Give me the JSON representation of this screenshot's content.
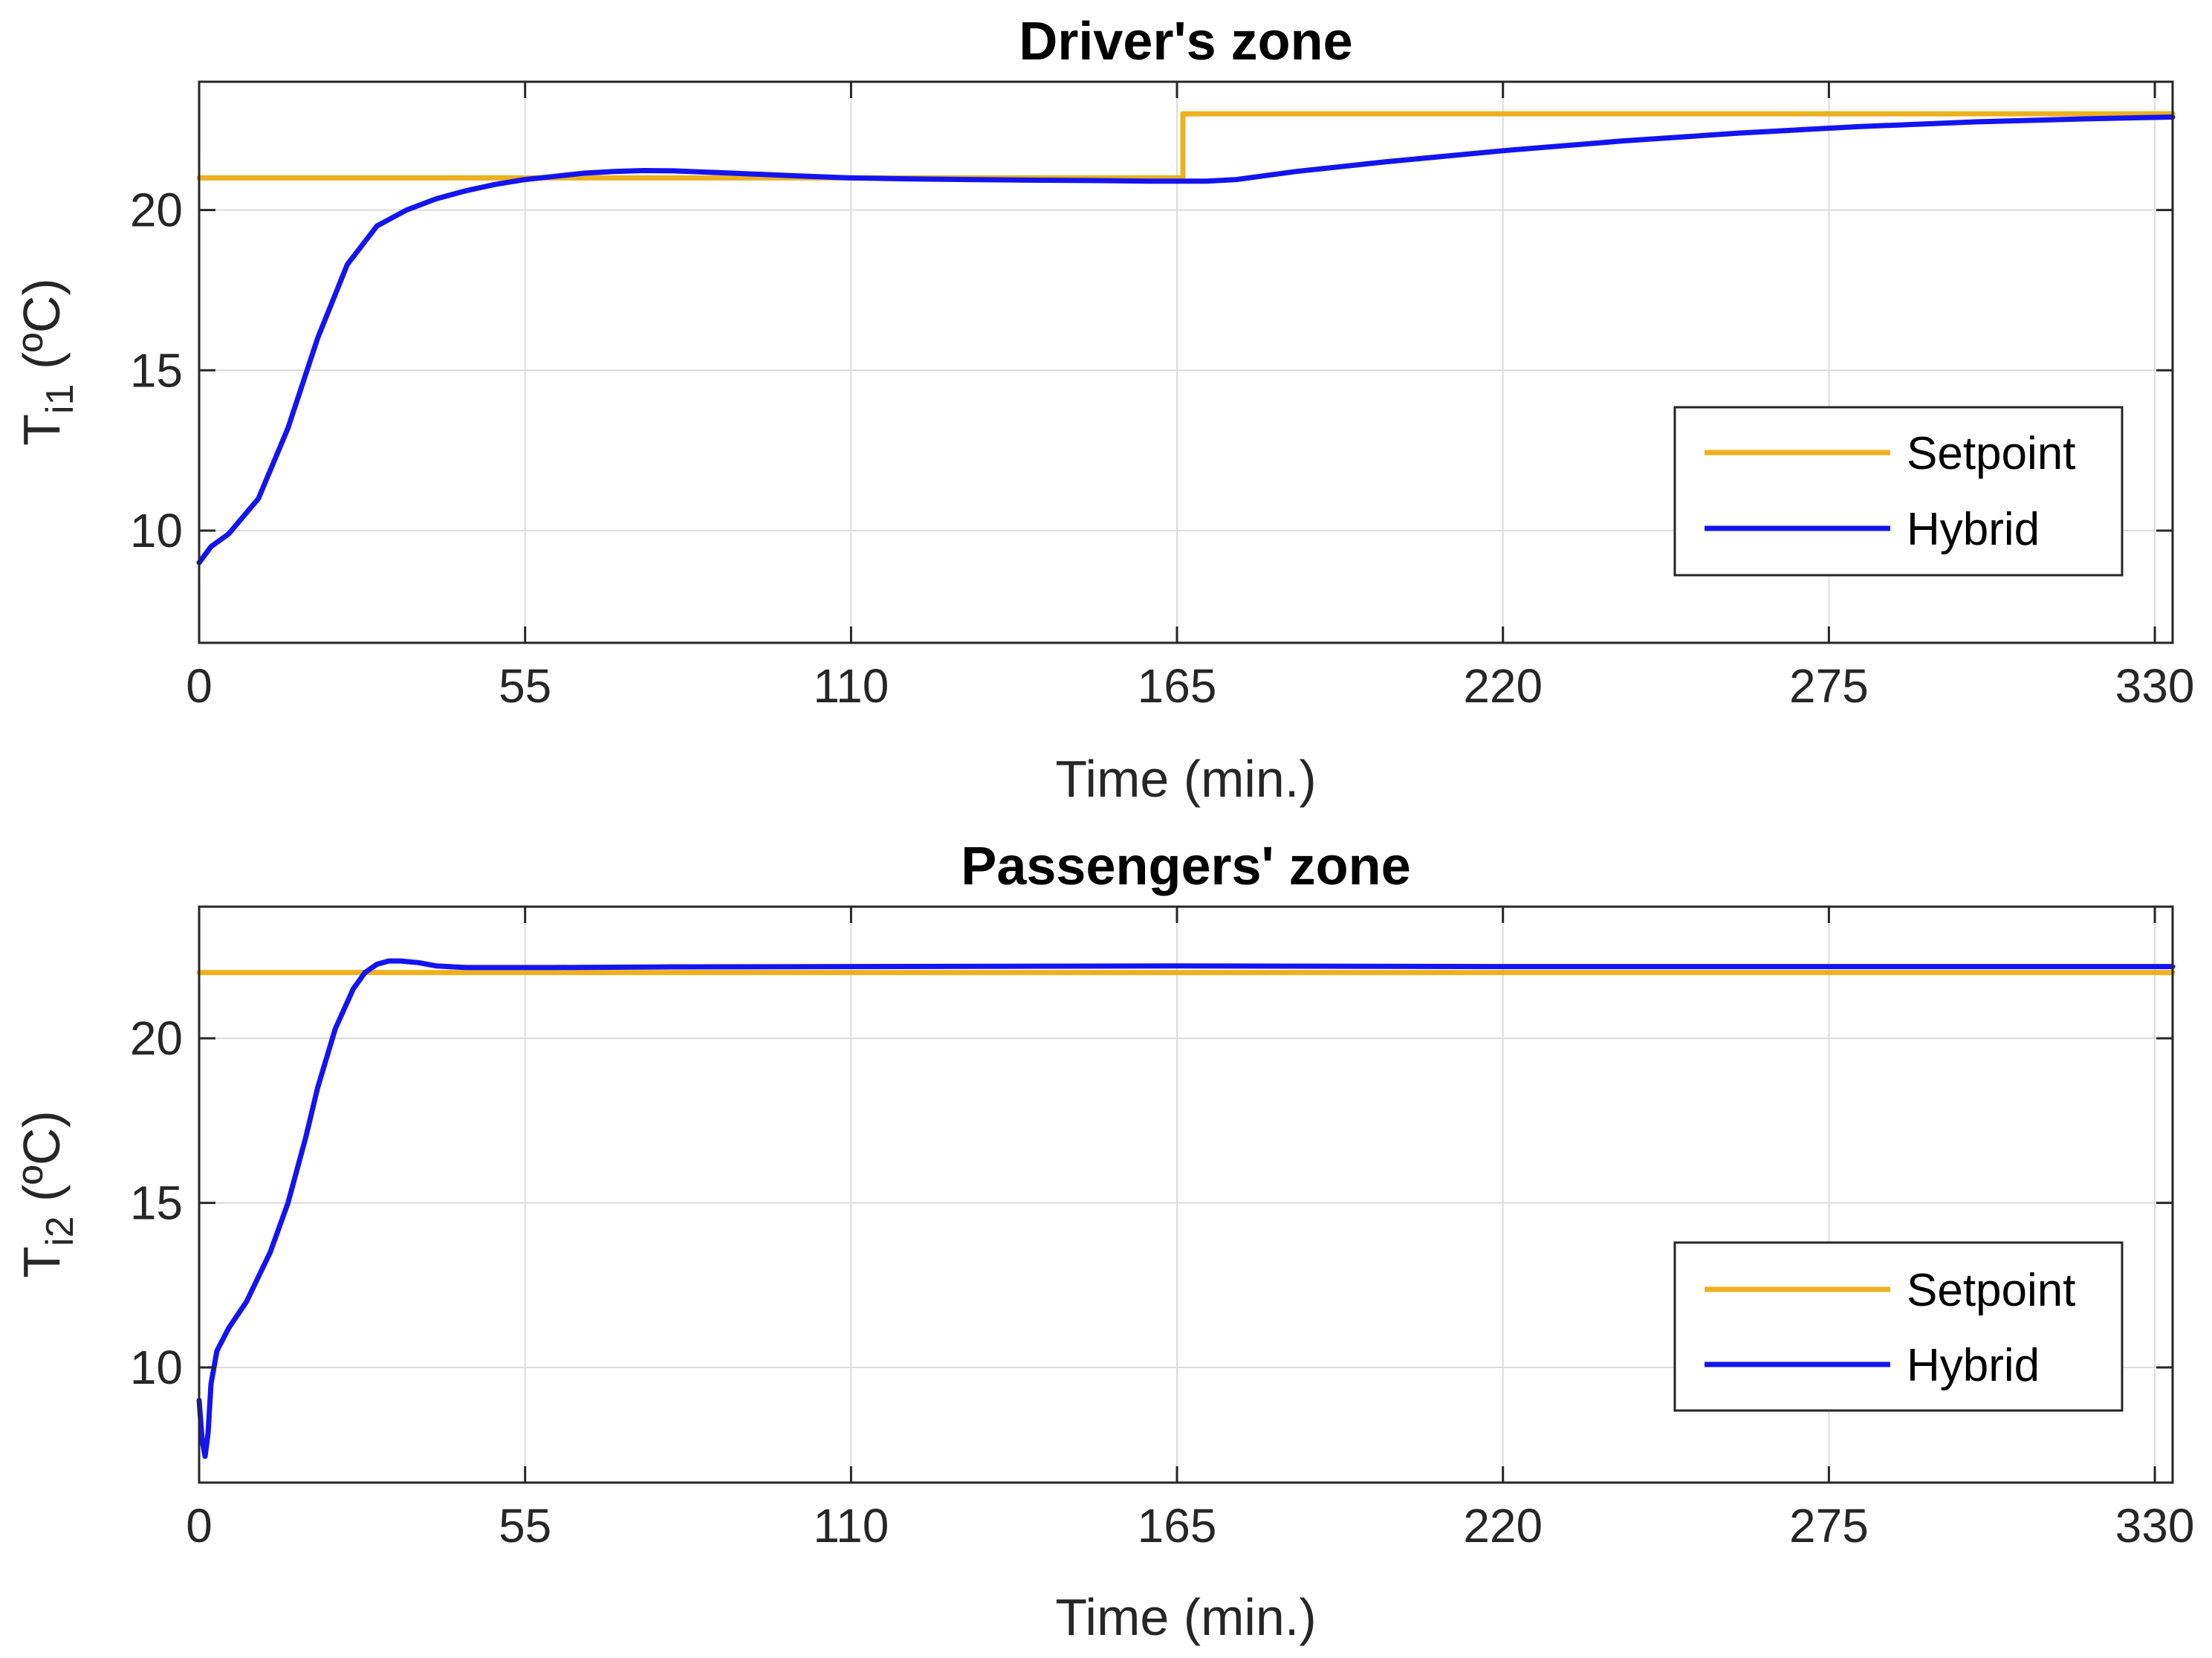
{
  "chart_data": [
    {
      "type": "line",
      "title": "Driver's zone",
      "xlabel": "Time (min.)",
      "ylabel": {
        "main": "T",
        "sub": "i1",
        "units": " (ºC)"
      },
      "xlim": [
        0,
        333
      ],
      "ylim": [
        6.5,
        24
      ],
      "xticks": [
        0,
        55,
        110,
        165,
        220,
        275,
        330
      ],
      "yticks": [
        10,
        15,
        20
      ],
      "grid": true,
      "legend": {
        "position": "bottom-right",
        "entries": [
          "Setpoint",
          "Hybrid"
        ]
      },
      "series": [
        {
          "name": "Setpoint",
          "color": "#EDB120",
          "x": [
            0,
            166,
            166,
            333
          ],
          "y": [
            21,
            21,
            23,
            23
          ]
        },
        {
          "name": "Hybrid",
          "color": "#1414F0",
          "x": [
            0,
            2,
            5,
            10,
            15,
            20,
            25,
            30,
            35,
            40,
            45,
            50,
            55,
            60,
            65,
            70,
            75,
            80,
            90,
            100,
            110,
            120,
            130,
            140,
            150,
            160,
            165,
            170,
            175,
            185,
            200,
            220,
            240,
            260,
            280,
            300,
            320,
            333
          ],
          "y": [
            9.0,
            9.5,
            9.9,
            11.0,
            13.2,
            16.0,
            18.3,
            19.5,
            20.0,
            20.35,
            20.6,
            20.8,
            20.95,
            21.05,
            21.15,
            21.2,
            21.23,
            21.22,
            21.15,
            21.07,
            21.0,
            20.97,
            20.95,
            20.93,
            20.92,
            20.9,
            20.9,
            20.9,
            20.95,
            21.2,
            21.5,
            21.85,
            22.15,
            22.4,
            22.6,
            22.75,
            22.85,
            22.9
          ]
        }
      ]
    },
    {
      "type": "line",
      "title": "Passengers' zone",
      "xlabel": "Time (min.)",
      "ylabel": {
        "main": "T",
        "sub": "i2",
        "units": " (ºC)"
      },
      "xlim": [
        0,
        333
      ],
      "ylim": [
        6.5,
        24
      ],
      "xticks": [
        0,
        55,
        110,
        165,
        220,
        275,
        330
      ],
      "yticks": [
        10,
        15,
        20
      ],
      "grid": true,
      "legend": {
        "position": "bottom-right",
        "entries": [
          "Setpoint",
          "Hybrid"
        ]
      },
      "series": [
        {
          "name": "Setpoint",
          "color": "#EDB120",
          "x": [
            0,
            333
          ],
          "y": [
            22,
            22
          ]
        },
        {
          "name": "Hybrid",
          "color": "#1414F0",
          "x": [
            0,
            0.5,
            1,
            1.5,
            2,
            3,
            5,
            8,
            12,
            15,
            18,
            20,
            23,
            26,
            28,
            30,
            32,
            34,
            37,
            40,
            45,
            50,
            60,
            80,
            110,
            165,
            220,
            275,
            333
          ],
          "y": [
            9.0,
            7.8,
            7.3,
            8.0,
            9.5,
            10.5,
            11.2,
            12.0,
            13.5,
            15.0,
            17.0,
            18.5,
            20.3,
            21.5,
            22.0,
            22.25,
            22.35,
            22.35,
            22.3,
            22.2,
            22.15,
            22.15,
            22.15,
            22.17,
            22.18,
            22.2,
            22.18,
            22.18,
            22.18
          ]
        }
      ]
    }
  ]
}
